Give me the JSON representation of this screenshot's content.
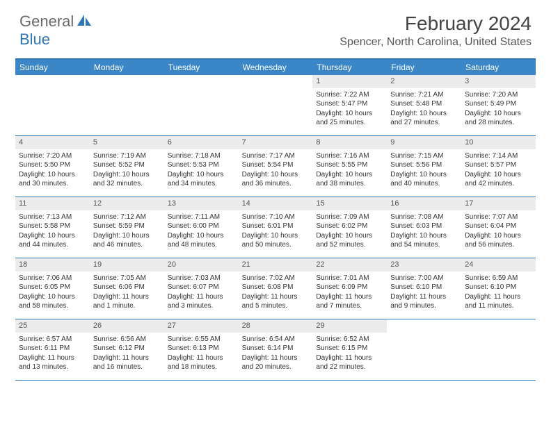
{
  "logo": {
    "general": "General",
    "blue": "Blue"
  },
  "title": "February 2024",
  "location": "Spencer, North Carolina, United States",
  "colors": {
    "header_bar": "#3a86c6",
    "border": "#2d77b6",
    "daynum_bg": "#ececec",
    "text": "#333333",
    "logo_gray": "#6a6a6a",
    "logo_blue": "#2d77b6"
  },
  "weekdays": [
    "Sunday",
    "Monday",
    "Tuesday",
    "Wednesday",
    "Thursday",
    "Friday",
    "Saturday"
  ],
  "weeks": [
    [
      null,
      null,
      null,
      null,
      {
        "n": "1",
        "sr": "Sunrise: 7:22 AM",
        "ss": "Sunset: 5:47 PM",
        "d1": "Daylight: 10 hours",
        "d2": "and 25 minutes."
      },
      {
        "n": "2",
        "sr": "Sunrise: 7:21 AM",
        "ss": "Sunset: 5:48 PM",
        "d1": "Daylight: 10 hours",
        "d2": "and 27 minutes."
      },
      {
        "n": "3",
        "sr": "Sunrise: 7:20 AM",
        "ss": "Sunset: 5:49 PM",
        "d1": "Daylight: 10 hours",
        "d2": "and 28 minutes."
      }
    ],
    [
      {
        "n": "4",
        "sr": "Sunrise: 7:20 AM",
        "ss": "Sunset: 5:50 PM",
        "d1": "Daylight: 10 hours",
        "d2": "and 30 minutes."
      },
      {
        "n": "5",
        "sr": "Sunrise: 7:19 AM",
        "ss": "Sunset: 5:52 PM",
        "d1": "Daylight: 10 hours",
        "d2": "and 32 minutes."
      },
      {
        "n": "6",
        "sr": "Sunrise: 7:18 AM",
        "ss": "Sunset: 5:53 PM",
        "d1": "Daylight: 10 hours",
        "d2": "and 34 minutes."
      },
      {
        "n": "7",
        "sr": "Sunrise: 7:17 AM",
        "ss": "Sunset: 5:54 PM",
        "d1": "Daylight: 10 hours",
        "d2": "and 36 minutes."
      },
      {
        "n": "8",
        "sr": "Sunrise: 7:16 AM",
        "ss": "Sunset: 5:55 PM",
        "d1": "Daylight: 10 hours",
        "d2": "and 38 minutes."
      },
      {
        "n": "9",
        "sr": "Sunrise: 7:15 AM",
        "ss": "Sunset: 5:56 PM",
        "d1": "Daylight: 10 hours",
        "d2": "and 40 minutes."
      },
      {
        "n": "10",
        "sr": "Sunrise: 7:14 AM",
        "ss": "Sunset: 5:57 PM",
        "d1": "Daylight: 10 hours",
        "d2": "and 42 minutes."
      }
    ],
    [
      {
        "n": "11",
        "sr": "Sunrise: 7:13 AM",
        "ss": "Sunset: 5:58 PM",
        "d1": "Daylight: 10 hours",
        "d2": "and 44 minutes."
      },
      {
        "n": "12",
        "sr": "Sunrise: 7:12 AM",
        "ss": "Sunset: 5:59 PM",
        "d1": "Daylight: 10 hours",
        "d2": "and 46 minutes."
      },
      {
        "n": "13",
        "sr": "Sunrise: 7:11 AM",
        "ss": "Sunset: 6:00 PM",
        "d1": "Daylight: 10 hours",
        "d2": "and 48 minutes."
      },
      {
        "n": "14",
        "sr": "Sunrise: 7:10 AM",
        "ss": "Sunset: 6:01 PM",
        "d1": "Daylight: 10 hours",
        "d2": "and 50 minutes."
      },
      {
        "n": "15",
        "sr": "Sunrise: 7:09 AM",
        "ss": "Sunset: 6:02 PM",
        "d1": "Daylight: 10 hours",
        "d2": "and 52 minutes."
      },
      {
        "n": "16",
        "sr": "Sunrise: 7:08 AM",
        "ss": "Sunset: 6:03 PM",
        "d1": "Daylight: 10 hours",
        "d2": "and 54 minutes."
      },
      {
        "n": "17",
        "sr": "Sunrise: 7:07 AM",
        "ss": "Sunset: 6:04 PM",
        "d1": "Daylight: 10 hours",
        "d2": "and 56 minutes."
      }
    ],
    [
      {
        "n": "18",
        "sr": "Sunrise: 7:06 AM",
        "ss": "Sunset: 6:05 PM",
        "d1": "Daylight: 10 hours",
        "d2": "and 58 minutes."
      },
      {
        "n": "19",
        "sr": "Sunrise: 7:05 AM",
        "ss": "Sunset: 6:06 PM",
        "d1": "Daylight: 11 hours",
        "d2": "and 1 minute."
      },
      {
        "n": "20",
        "sr": "Sunrise: 7:03 AM",
        "ss": "Sunset: 6:07 PM",
        "d1": "Daylight: 11 hours",
        "d2": "and 3 minutes."
      },
      {
        "n": "21",
        "sr": "Sunrise: 7:02 AM",
        "ss": "Sunset: 6:08 PM",
        "d1": "Daylight: 11 hours",
        "d2": "and 5 minutes."
      },
      {
        "n": "22",
        "sr": "Sunrise: 7:01 AM",
        "ss": "Sunset: 6:09 PM",
        "d1": "Daylight: 11 hours",
        "d2": "and 7 minutes."
      },
      {
        "n": "23",
        "sr": "Sunrise: 7:00 AM",
        "ss": "Sunset: 6:10 PM",
        "d1": "Daylight: 11 hours",
        "d2": "and 9 minutes."
      },
      {
        "n": "24",
        "sr": "Sunrise: 6:59 AM",
        "ss": "Sunset: 6:10 PM",
        "d1": "Daylight: 11 hours",
        "d2": "and 11 minutes."
      }
    ],
    [
      {
        "n": "25",
        "sr": "Sunrise: 6:57 AM",
        "ss": "Sunset: 6:11 PM",
        "d1": "Daylight: 11 hours",
        "d2": "and 13 minutes."
      },
      {
        "n": "26",
        "sr": "Sunrise: 6:56 AM",
        "ss": "Sunset: 6:12 PM",
        "d1": "Daylight: 11 hours",
        "d2": "and 16 minutes."
      },
      {
        "n": "27",
        "sr": "Sunrise: 6:55 AM",
        "ss": "Sunset: 6:13 PM",
        "d1": "Daylight: 11 hours",
        "d2": "and 18 minutes."
      },
      {
        "n": "28",
        "sr": "Sunrise: 6:54 AM",
        "ss": "Sunset: 6:14 PM",
        "d1": "Daylight: 11 hours",
        "d2": "and 20 minutes."
      },
      {
        "n": "29",
        "sr": "Sunrise: 6:52 AM",
        "ss": "Sunset: 6:15 PM",
        "d1": "Daylight: 11 hours",
        "d2": "and 22 minutes."
      },
      null,
      null
    ]
  ]
}
